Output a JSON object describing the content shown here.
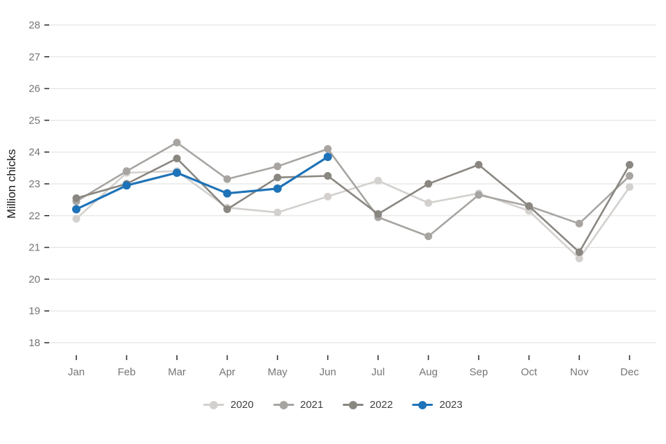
{
  "chart_data": {
    "type": "line",
    "title": "",
    "xlabel": "",
    "ylabel": "Million chicks",
    "categories": [
      "Jan",
      "Feb",
      "Mar",
      "Apr",
      "May",
      "Jun",
      "Jul",
      "Aug",
      "Sep",
      "Oct",
      "Nov",
      "Dec"
    ],
    "yticks": [
      28,
      27,
      26,
      25,
      24,
      23,
      22,
      21,
      20,
      19,
      18
    ],
    "ylim": [
      18,
      28
    ],
    "grid": "horizontal-major",
    "legend_position": "bottom",
    "colors": {
      "grid": "#e4e3e2",
      "tick_mark": "#333333",
      "tick_text": "#757575",
      "axis_title_text": "#1a1a1a"
    },
    "series": [
      {
        "name": "2020",
        "color": "#d3d0cd",
        "values": [
          21.9,
          23.35,
          23.4,
          22.25,
          22.1,
          22.6,
          23.1,
          22.4,
          22.7,
          22.15,
          20.65,
          22.9
        ]
      },
      {
        "name": "2021",
        "color": "#a7a4a1",
        "values": [
          22.45,
          23.4,
          24.3,
          23.15,
          23.55,
          24.1,
          21.95,
          21.35,
          22.65,
          22.3,
          21.75,
          23.25
        ]
      },
      {
        "name": "2022",
        "color": "#8a8680",
        "values": [
          22.55,
          23.0,
          23.8,
          22.2,
          23.2,
          23.25,
          22.05,
          23.0,
          23.6,
          22.3,
          20.85,
          23.6
        ]
      },
      {
        "name": "2023",
        "color": "#1e73b8",
        "values": [
          22.2,
          22.95,
          23.35,
          22.7,
          22.85,
          23.85
        ]
      }
    ]
  }
}
